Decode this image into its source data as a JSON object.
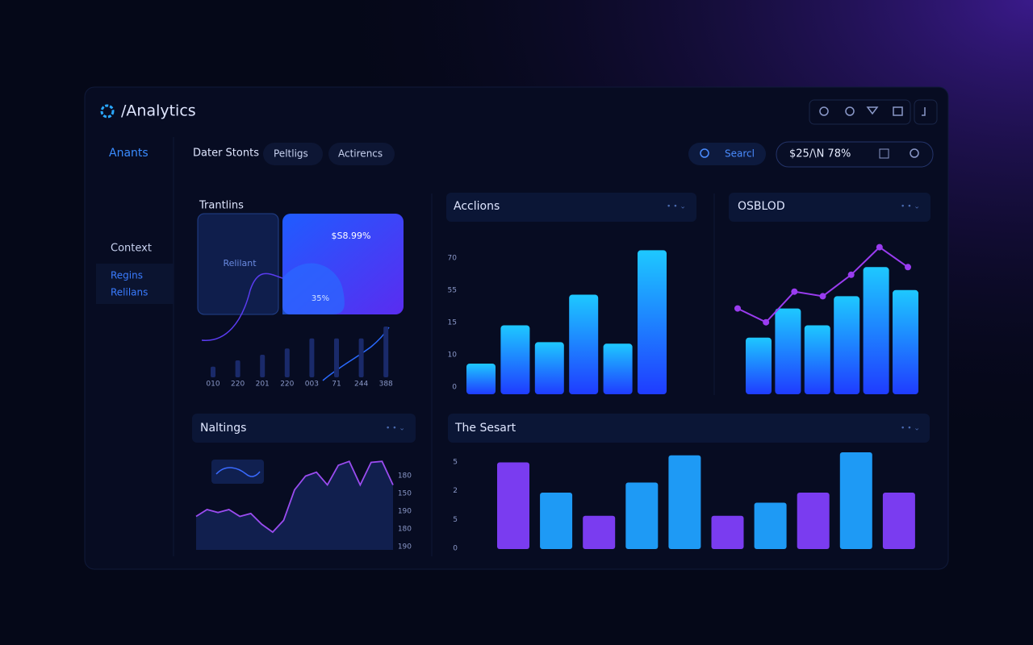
{
  "header": {
    "logo": "/Analytics"
  },
  "sidebar": {
    "title": "Anants",
    "section": "Context",
    "items": [
      "Regins",
      "Relilans"
    ]
  },
  "tabs": [
    "Dater Stonts",
    "Peltligs",
    "Actirencs"
  ],
  "search": {
    "label": "Searcl"
  },
  "status": {
    "label": "$25/\\N 78%"
  },
  "panels": [
    {
      "title": "Trantlins",
      "card_label": "Relilant",
      "card_value": "$S8.99%",
      "card_sub": "35%",
      "x_labels": [
        "010",
        "220",
        "201",
        "220",
        "003",
        "71",
        "244",
        "388"
      ],
      "values": [
        19,
        30,
        40,
        51,
        69,
        69,
        69,
        90
      ],
      "ylim": [
        0,
        100
      ],
      "color": "#1a2a6a"
    },
    {
      "title": "Acclions",
      "y_labels": [
        "70",
        "55",
        "15",
        "10",
        "0"
      ],
      "values": [
        20,
        45,
        34,
        65,
        33,
        94
      ],
      "ylim": [
        0,
        100
      ],
      "color": "url(#gb)"
    },
    {
      "title": "OSBLOD",
      "values": [
        37,
        56,
        45,
        64,
        83,
        68
      ],
      "line": [
        56,
        47,
        67,
        64,
        78,
        96,
        83
      ],
      "ylim": [
        0,
        100
      ],
      "color": "url(#gb)",
      "line_color": "#9a3cf0"
    },
    {
      "title": "Naltings",
      "y_labels": [
        "180",
        "150",
        "190",
        "180",
        "190"
      ],
      "values": [
        34,
        41,
        38,
        41,
        34,
        37,
        26,
        18,
        30,
        61,
        75,
        79,
        66,
        86,
        90,
        66,
        89,
        90,
        66
      ],
      "ylim": [
        0,
        100
      ],
      "color": "#9a4cf0"
    },
    {
      "title": "The Sesart",
      "y_labels": [
        "5",
        "2",
        "5",
        "0"
      ],
      "values": [
        86,
        56,
        33,
        66,
        93,
        33,
        46,
        56,
        96,
        56
      ],
      "ylim": [
        0,
        100
      ],
      "colors": [
        "#7a3cf0",
        "#1e9af5",
        "#7a3cf0",
        "#1e9af5",
        "#1e9af5",
        "#7a3cf0",
        "#1e9af5",
        "#7a3cf0",
        "#1e9af5",
        "#7a3cf0"
      ]
    }
  ]
}
